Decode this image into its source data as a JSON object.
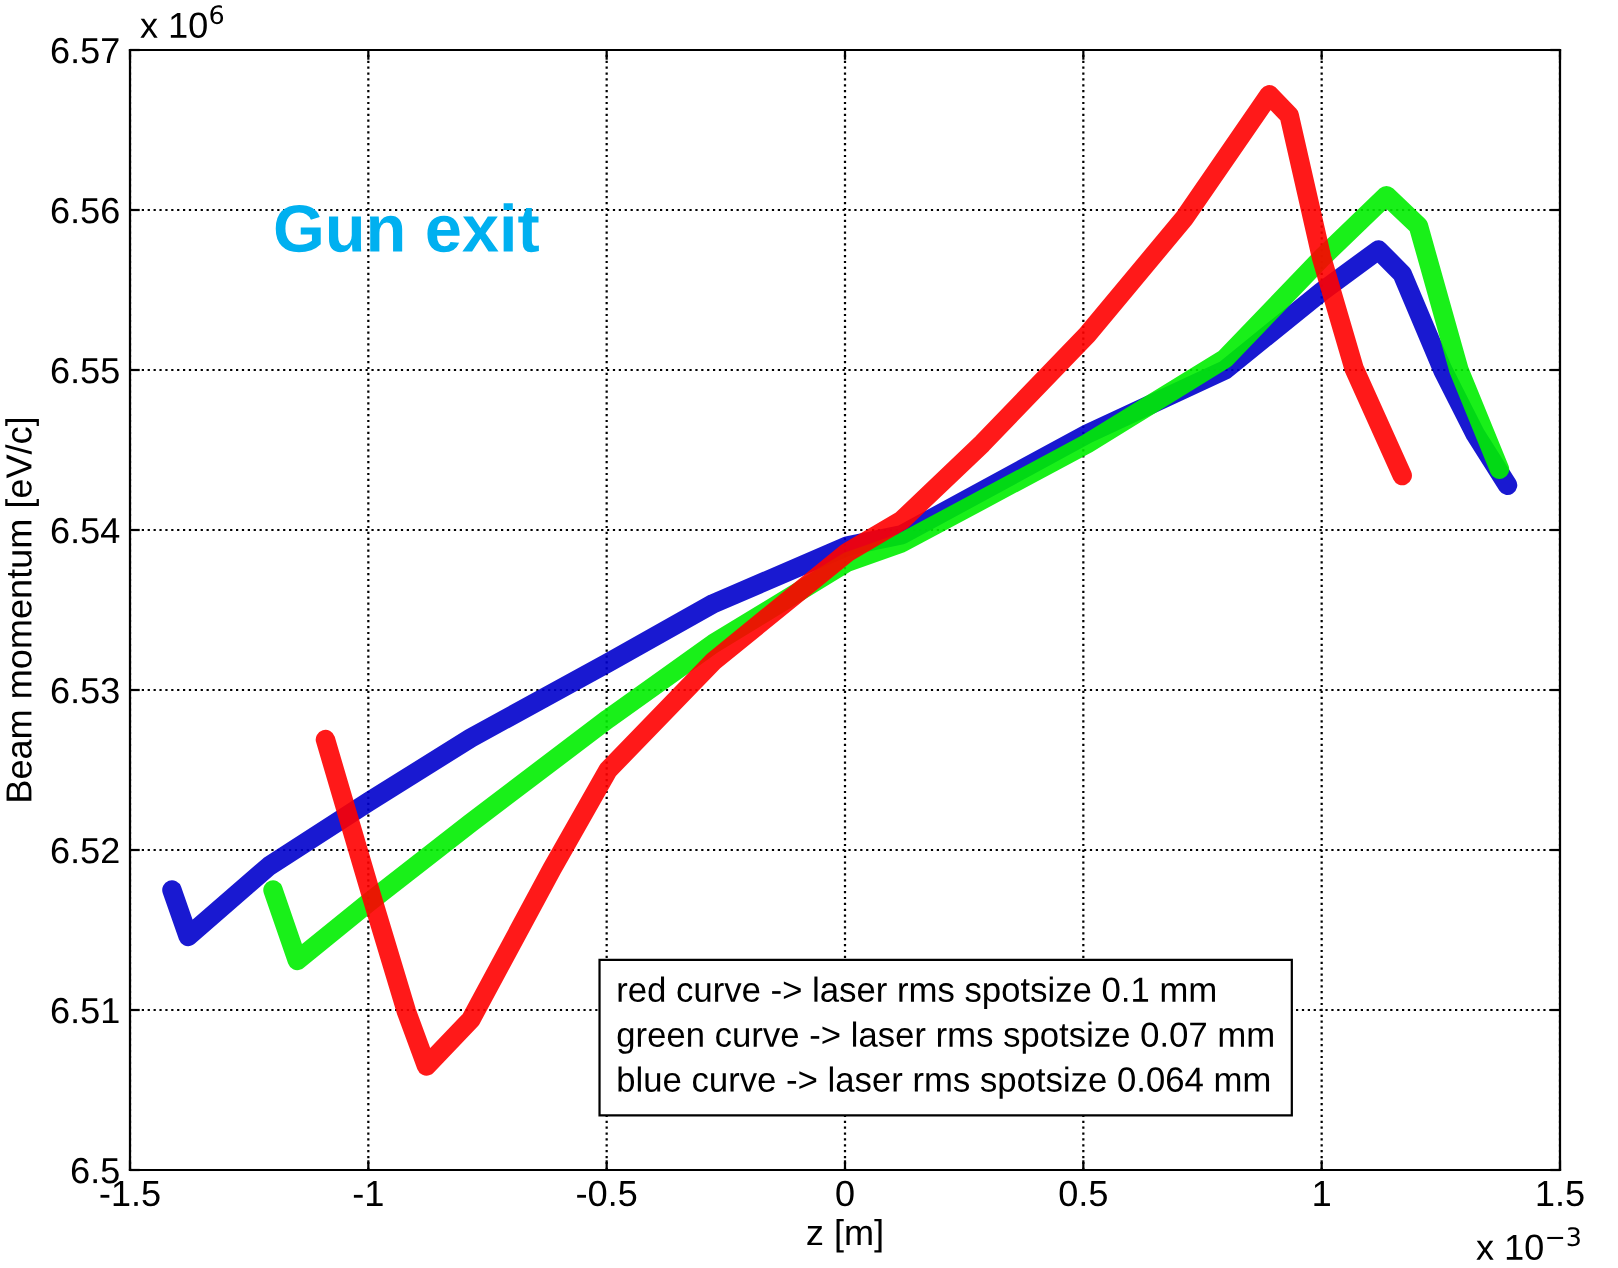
{
  "chart_data": {
    "type": "line",
    "xlabel": "z [m]",
    "ylabel": "Beam momentum [eV/c]",
    "xlim": [
      -1.5,
      1.5
    ],
    "xticks": [
      -1.5,
      -1,
      -0.5,
      0,
      0.5,
      1,
      1.5
    ],
    "ylim": [
      6.5,
      6.57
    ],
    "yticks": [
      6.5,
      6.51,
      6.52,
      6.53,
      6.54,
      6.55,
      6.56,
      6.57
    ],
    "grid": true,
    "line_style": "solid",
    "marker": "none",
    "annotations": [
      "Gun exit",
      "red curve -> laser rms spotsize 0.1 mm\ngreen curve -> laser rms spotsize 0.07 mm\nblue curve -> laser rms spotsize 0.064 mm",
      "x 10$^{6}$",
      "x 10$^{−3}$"
    ],
    "series": [
      {
        "color": "#0000cc",
        "x": [
          -1.412,
          -1.378,
          -1.208,
          -1.0,
          -0.785,
          -0.497,
          -0.276,
          0.005,
          0.119,
          0.508,
          0.797,
          1.0,
          1.119,
          1.169,
          1.254,
          1.322,
          1.39
        ],
        "values": [
          6.5175,
          6.5146,
          6.519,
          6.523,
          6.527,
          6.5317,
          6.5354,
          6.539,
          6.5397,
          6.546,
          6.55,
          6.5549,
          6.5575,
          6.556,
          6.55,
          6.546,
          6.5428
        ]
      },
      {
        "color": "#00ee00",
        "x": [
          -1.2,
          -1.149,
          -1.0,
          -0.785,
          -0.497,
          -0.276,
          0.005,
          0.119,
          0.508,
          0.797,
          1.0,
          1.136,
          1.203,
          1.288,
          1.373
        ],
        "values": [
          6.5175,
          6.5131,
          6.5167,
          6.5217,
          6.5282,
          6.5329,
          6.538,
          6.5392,
          6.5454,
          6.5507,
          6.557,
          6.5609,
          6.559,
          6.55,
          6.5438
        ]
      },
      {
        "color": "#ff0000",
        "x": [
          -1.09,
          -1.0,
          -0.92,
          -0.878,
          -0.785,
          -0.615,
          -0.497,
          -0.276,
          0.005,
          0.119,
          0.288,
          0.508,
          0.712,
          0.89,
          0.932,
          1.0,
          1.068,
          1.169
        ],
        "values": [
          6.5269,
          6.5178,
          6.5099,
          6.5065,
          6.5094,
          6.5188,
          6.525,
          6.5318,
          6.5386,
          6.5406,
          6.5454,
          6.5522,
          6.5595,
          6.5672,
          6.5659,
          6.557,
          6.5501,
          6.5434
        ]
      }
    ]
  }
}
